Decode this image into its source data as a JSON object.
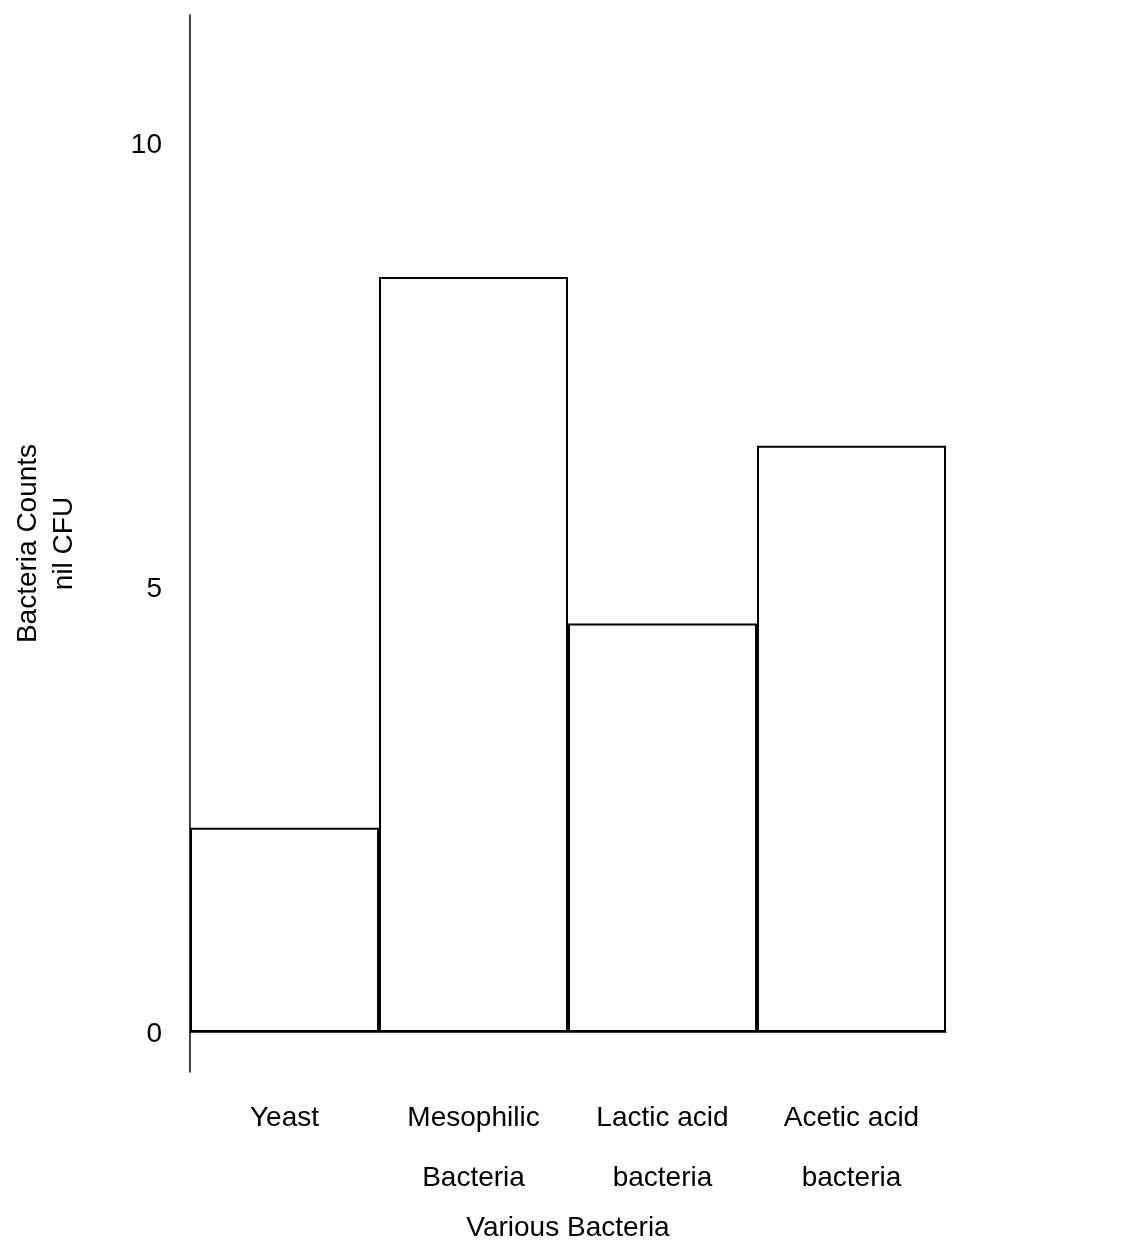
{
  "chart_data": {
    "type": "bar",
    "xlabel": "Various Bacteria",
    "ylabel": "Bacteria Counts\nnil CFU",
    "categories": [
      "Yeast",
      "Mesophilic\nBacteria",
      "Lactic acid\nbacteria",
      "Acetic acid\nbacteria"
    ],
    "values": [
      2.3,
      8.5,
      4.6,
      6.6
    ],
    "color": "#ffffff",
    "ylim": [
      -0.45,
      11.45
    ],
    "yticks": [
      0,
      5,
      10
    ]
  }
}
